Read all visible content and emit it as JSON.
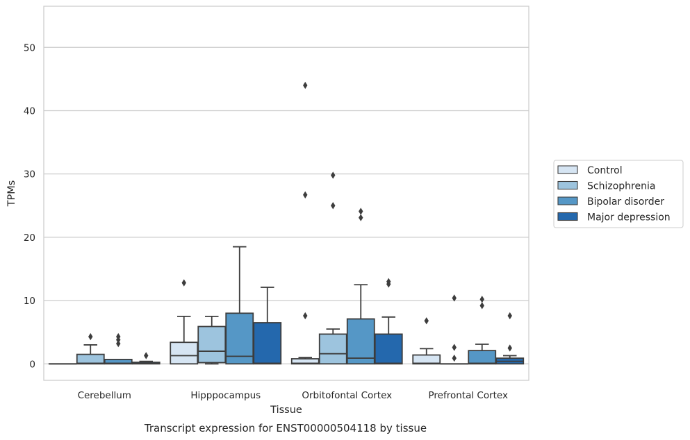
{
  "chart_data": {
    "type": "box",
    "title": "",
    "caption": "Transcript expression for ENST00000504118 by tissue",
    "xlabel": "Tissue",
    "ylabel": "TPMs",
    "ylim": [
      -2.6,
      56.5
    ],
    "yticks": [
      0,
      10,
      20,
      30,
      40,
      50
    ],
    "grid": "horizontal",
    "legend_position": "right",
    "categories": [
      "Cerebellum",
      "Hipppocampus",
      "Orbitofontal Cortex",
      "Prefrontal Cortex"
    ],
    "series": [
      {
        "name": "Control",
        "color": "#d6e5f3",
        "boxes": [
          {
            "q1": 0,
            "median": 0,
            "q3": 0,
            "whisker_low": 0,
            "whisker_high": 0,
            "outliers": []
          },
          {
            "q1": 0,
            "median": 1.3,
            "q3": 3.4,
            "whisker_low": 0,
            "whisker_high": 7.5,
            "outliers": [
              12.8
            ]
          },
          {
            "q1": 0,
            "median": 0.1,
            "q3": 0.8,
            "whisker_low": 0,
            "whisker_high": 1.0,
            "outliers": [
              7.6,
              26.7,
              44.0
            ]
          },
          {
            "q1": 0,
            "median": 0.1,
            "q3": 1.4,
            "whisker_low": 0,
            "whisker_high": 2.4,
            "outliers": [
              6.8
            ]
          }
        ]
      },
      {
        "name": "Schizophrenia",
        "color": "#9dc4de",
        "boxes": [
          {
            "q1": 0,
            "median": 0.1,
            "q3": 1.5,
            "whisker_low": 0,
            "whisker_high": 3.0,
            "outliers": [
              4.3
            ]
          },
          {
            "q1": 0.2,
            "median": 2.0,
            "q3": 5.9,
            "whisker_low": 0,
            "whisker_high": 7.5,
            "outliers": []
          },
          {
            "q1": 0,
            "median": 1.6,
            "q3": 4.7,
            "whisker_low": 0,
            "whisker_high": 5.5,
            "outliers": [
              25.0,
              29.8
            ]
          },
          {
            "q1": 0,
            "median": 0,
            "q3": 0,
            "whisker_low": 0,
            "whisker_high": 0,
            "outliers": [
              0.9,
              2.6,
              10.4
            ]
          }
        ]
      },
      {
        "name": "Bipolar disorder",
        "color": "#5597c6",
        "boxes": [
          {
            "q1": 0,
            "median": 0.1,
            "q3": 0.7,
            "whisker_low": 0,
            "whisker_high": 0.7,
            "outliers": [
              3.2,
              3.8,
              4.3
            ]
          },
          {
            "q1": 0,
            "median": 1.2,
            "q3": 8.0,
            "whisker_low": 0,
            "whisker_high": 18.5,
            "outliers": []
          },
          {
            "q1": 0,
            "median": 0.9,
            "q3": 7.1,
            "whisker_low": 0,
            "whisker_high": 12.5,
            "outliers": [
              23.1,
              24.1
            ]
          },
          {
            "q1": 0,
            "median": 0.1,
            "q3": 2.1,
            "whisker_low": 0,
            "whisker_high": 3.1,
            "outliers": [
              9.2,
              10.2
            ]
          }
        ]
      },
      {
        "name": "Major depression",
        "color": "#2468ad",
        "boxes": [
          {
            "q1": 0,
            "median": 0.05,
            "q3": 0.25,
            "whisker_low": 0,
            "whisker_high": 0.4,
            "outliers": [
              1.3
            ]
          },
          {
            "q1": 0,
            "median": 0.1,
            "q3": 6.5,
            "whisker_low": 0,
            "whisker_high": 12.1,
            "outliers": []
          },
          {
            "q1": 0,
            "median": 0.1,
            "q3": 4.7,
            "whisker_low": 0,
            "whisker_high": 7.4,
            "outliers": [
              12.6,
              13.0
            ]
          },
          {
            "q1": 0,
            "median": 0.4,
            "q3": 0.9,
            "whisker_low": 0,
            "whisker_high": 1.3,
            "outliers": [
              2.5,
              7.6
            ]
          }
        ]
      }
    ]
  }
}
